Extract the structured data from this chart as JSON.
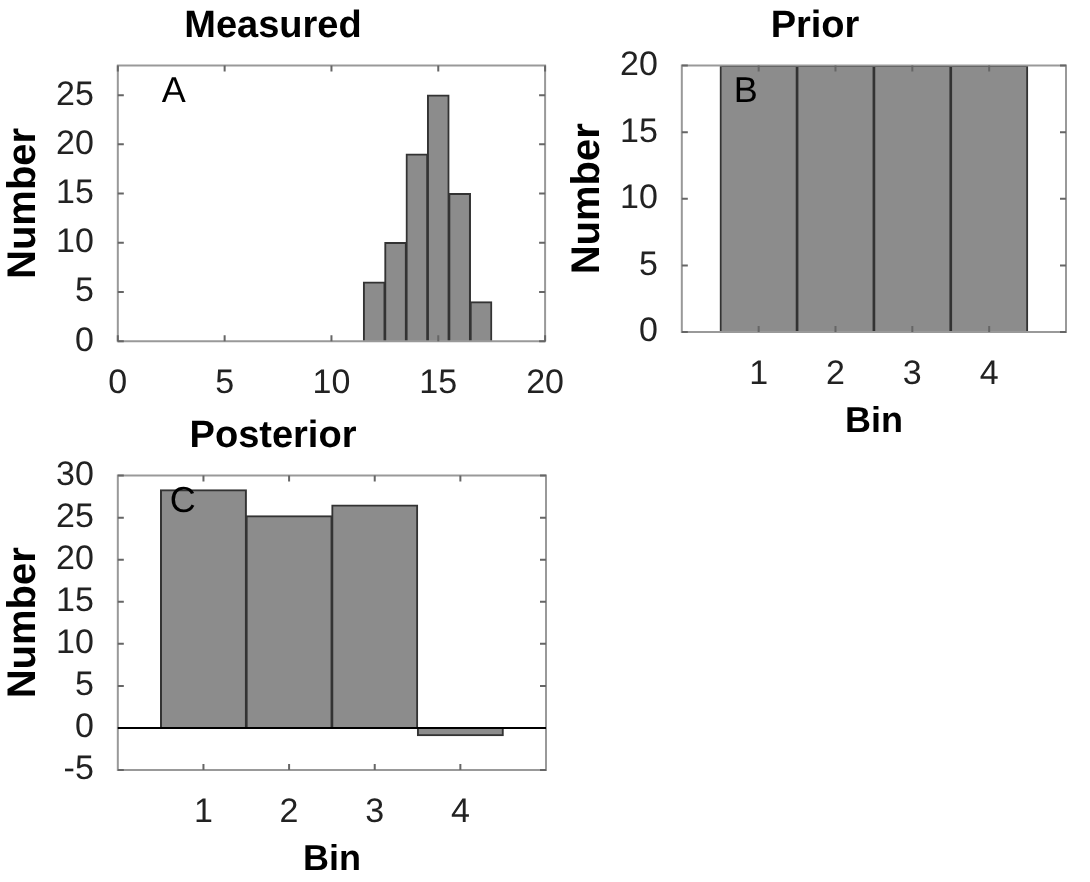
{
  "chart_data": [
    {
      "type": "histogram",
      "title": "Measured",
      "ylabel": "Number",
      "bins": [
        11.5,
        12.5,
        13.5,
        14.5,
        15.5,
        16.5,
        17.5
      ],
      "values": [
        6,
        10,
        19,
        25,
        15,
        4
      ],
      "color": "#8c8c8c",
      "xlim": [
        0,
        20
      ],
      "xticks": [
        0,
        5,
        10,
        15,
        20
      ],
      "ylim": [
        0,
        28
      ],
      "yticks": [
        0,
        5,
        10,
        15,
        20,
        25
      ],
      "annotations": [
        "A"
      ]
    },
    {
      "type": "bar",
      "title": "Prior",
      "xlabel": "Bin",
      "ylabel": "Number",
      "categories": [
        "1",
        "2",
        "3",
        "4"
      ],
      "values": [
        20,
        20,
        20,
        20
      ],
      "color": "#8c8c8c",
      "ylim": [
        0,
        20
      ],
      "yticks": [
        0,
        5,
        10,
        15,
        20
      ],
      "annotations": [
        "B"
      ]
    },
    {
      "type": "bar",
      "title": "Posterior",
      "xlabel": "Bin",
      "ylabel": "Number",
      "categories": [
        "1",
        "2",
        "3",
        "4"
      ],
      "values": [
        28.3,
        25.2,
        26.5,
        -0.9
      ],
      "color": "#8c8c8c",
      "ylim": [
        -5,
        30
      ],
      "yticks": [
        -5,
        0,
        5,
        10,
        15,
        20,
        25,
        30
      ],
      "annotations": [
        "C"
      ],
      "ref_lines": [
        {
          "axis": "y",
          "value": 0
        }
      ]
    }
  ]
}
